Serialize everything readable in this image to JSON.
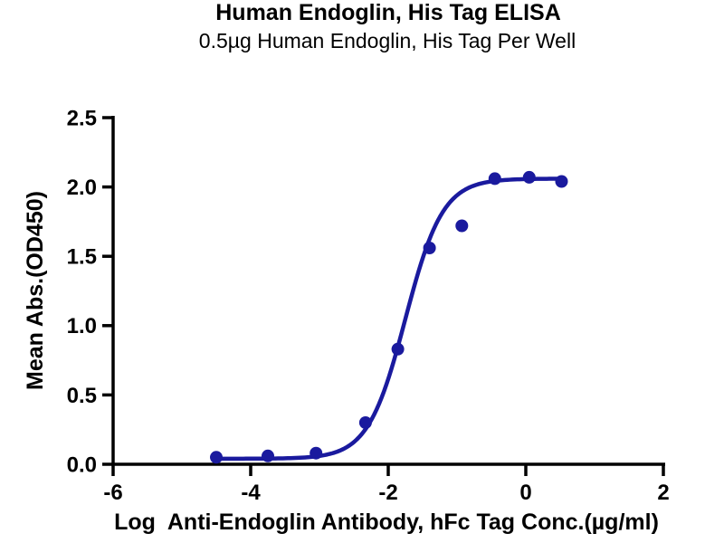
{
  "chart_data": {
    "type": "scatter",
    "title": "Human Endoglin, His Tag ELISA",
    "subtitle": "0.5µg Human Endoglin, His Tag Per Well",
    "xlabel": "Log  Anti-Endoglin Antibody, hFc Tag Conc.(µg/ml)",
    "ylabel": "Mean Abs.(OD450)",
    "xlim": [
      -6,
      2
    ],
    "ylim": [
      0,
      2.5
    ],
    "x_ticks": [
      -6,
      -4,
      -2,
      0,
      2
    ],
    "y_ticks": [
      0,
      0.5,
      1,
      1.5,
      2,
      2.5
    ],
    "grid": false,
    "legend": "none",
    "points": [
      {
        "x": -4.5,
        "y": 0.05
      },
      {
        "x": -3.75,
        "y": 0.06
      },
      {
        "x": -3.05,
        "y": 0.08
      },
      {
        "x": -2.33,
        "y": 0.3
      },
      {
        "x": -1.86,
        "y": 0.83
      },
      {
        "x": -1.4,
        "y": 1.56
      },
      {
        "x": -0.93,
        "y": 1.72
      },
      {
        "x": -0.45,
        "y": 2.06
      },
      {
        "x": 0.05,
        "y": 2.07
      },
      {
        "x": 0.52,
        "y": 2.04
      }
    ],
    "fit_curve": {
      "model": "4PL sigmoid",
      "bottom": 0.04,
      "top": 2.06,
      "logEC50": -1.75,
      "hillslope": 1.6,
      "x_start": -4.5,
      "x_end": 0.52
    },
    "colors": {
      "series": "#1a1a9e",
      "axis": "#000000",
      "text": "#000000"
    }
  }
}
